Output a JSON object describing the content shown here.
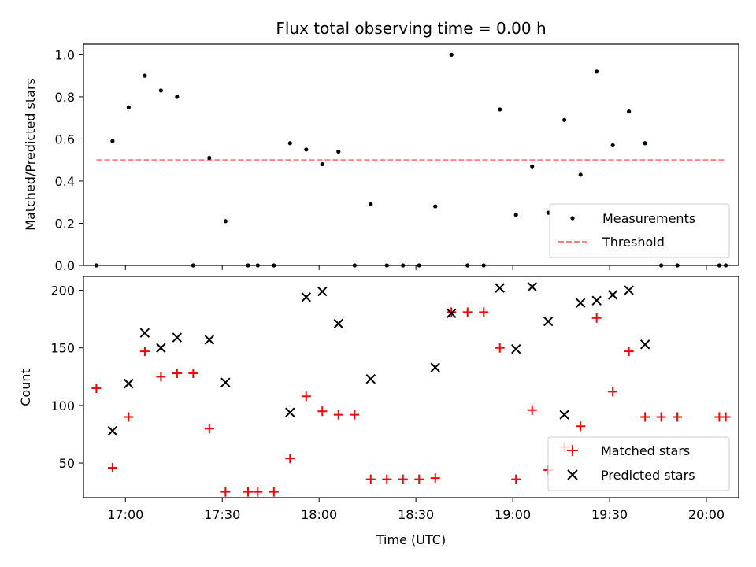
{
  "chart_data": [
    {
      "type": "scatter",
      "title": "Flux total observing time = 0.00 h",
      "xlabel": "",
      "ylabel": "Matched/Predicted stars",
      "ylim": [
        0,
        1.05
      ],
      "yticks": [
        "0.0",
        "0.2",
        "0.4",
        "0.6",
        "0.8",
        "1.0"
      ],
      "grid": false,
      "legend_position": "lower-right",
      "series": [
        {
          "name": "Measurements",
          "marker": "dot",
          "color": "#000000",
          "x": [
            "16:51",
            "16:56",
            "17:01",
            "17:06",
            "17:11",
            "17:16",
            "17:21",
            "17:26",
            "17:31",
            "17:38",
            "17:41",
            "17:46",
            "17:51",
            "17:56",
            "18:01",
            "18:06",
            "18:11",
            "18:16",
            "18:21",
            "18:26",
            "18:31",
            "18:36",
            "18:41",
            "18:46",
            "18:51",
            "18:56",
            "19:01",
            "19:06",
            "19:11",
            "19:16",
            "19:21",
            "19:26",
            "19:31",
            "19:36",
            "19:41",
            "19:46",
            "19:51",
            "20:04",
            "20:06"
          ],
          "y": [
            0.0,
            0.59,
            0.75,
            0.9,
            0.83,
            0.8,
            0.0,
            0.51,
            0.21,
            0.0,
            0.0,
            0.0,
            0.58,
            0.55,
            0.48,
            0.54,
            0.0,
            0.29,
            0.0,
            0.0,
            0.0,
            0.28,
            1.0,
            0.0,
            0.0,
            0.74,
            0.24,
            0.47,
            0.25,
            0.69,
            0.43,
            0.92,
            0.57,
            0.73,
            0.58,
            0.0,
            0.0,
            0.0,
            0.0
          ]
        },
        {
          "name": "Threshold",
          "style": "dashed",
          "color": "#ff7f7f",
          "x": [
            "16:51",
            "20:06"
          ],
          "y": [
            0.5,
            0.5
          ]
        }
      ]
    },
    {
      "type": "scatter",
      "title": "",
      "xlabel": "Time (UTC)",
      "ylabel": "Count",
      "ylim": [
        20,
        212
      ],
      "yticks": [
        "50",
        "100",
        "150",
        "200"
      ],
      "xticks": [
        "17:00",
        "17:30",
        "18:00",
        "18:30",
        "19:00",
        "19:30",
        "20:00"
      ],
      "grid": false,
      "legend_position": "lower-right",
      "series": [
        {
          "name": "Matched stars",
          "marker": "plus",
          "color": "#ff0000",
          "x": [
            "16:51",
            "16:56",
            "17:01",
            "17:06",
            "17:11",
            "17:16",
            "17:21",
            "17:26",
            "17:31",
            "17:38",
            "17:41",
            "17:46",
            "17:51",
            "17:56",
            "18:01",
            "18:06",
            "18:11",
            "18:16",
            "18:21",
            "18:26",
            "18:31",
            "18:36",
            "18:41",
            "18:46",
            "18:51",
            "18:56",
            "19:01",
            "19:06",
            "19:11",
            "19:16",
            "19:21",
            "19:26",
            "19:31",
            "19:36",
            "19:41",
            "19:46",
            "19:51",
            "20:04",
            "20:06"
          ],
          "y": [
            115,
            46,
            90,
            147,
            125,
            128,
            128,
            80,
            25,
            25,
            25,
            25,
            54,
            108,
            95,
            92,
            92,
            36,
            36,
            36,
            36,
            37,
            181,
            181,
            181,
            150,
            36,
            96,
            44,
            64,
            82,
            176,
            112,
            147,
            90,
            90,
            90,
            90,
            90
          ]
        },
        {
          "name": "Predicted stars",
          "marker": "x",
          "color": "#000000",
          "x": [
            "16:56",
            "17:01",
            "17:06",
            "17:11",
            "17:16",
            "17:26",
            "17:31",
            "17:51",
            "17:56",
            "18:01",
            "18:06",
            "18:16",
            "18:36",
            "18:41",
            "18:56",
            "19:01",
            "19:06",
            "19:11",
            "19:16",
            "19:21",
            "19:26",
            "19:31",
            "19:36",
            "19:41"
          ],
          "y": [
            78,
            119,
            163,
            150,
            159,
            157,
            120,
            94,
            194,
            199,
            171,
            123,
            133,
            180,
            202,
            149,
            203,
            173,
            92,
            189,
            191,
            196,
            200,
            153
          ]
        }
      ]
    }
  ]
}
